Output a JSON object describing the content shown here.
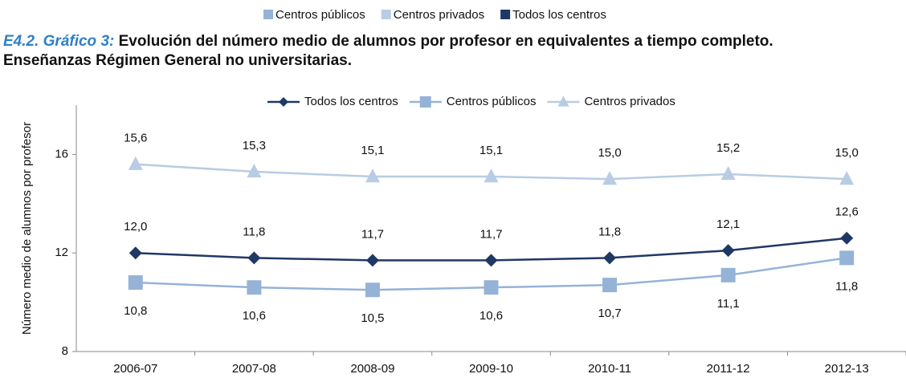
{
  "chart_data": {
    "type": "line",
    "title_prefix": "E4.2. Gráfico 3:",
    "title": "Evolución del número medio de alumnos por profesor en equivalentes a tiempo completo. Enseñanzas Régimen General no universitarias.",
    "ylabel": "Número medio de alumnos por profesor",
    "categories": [
      "2006-07",
      "2007-08",
      "2008-09",
      "2009-10",
      "2010-11",
      "2011-12",
      "2012-13"
    ],
    "series": [
      {
        "name": "Todos los centros",
        "color": "#1f3864",
        "marker": "diamond",
        "values": [
          12.0,
          11.8,
          11.7,
          11.7,
          11.8,
          12.1,
          12.6
        ],
        "value_labels": [
          "12,0",
          "11,8",
          "11,7",
          "11,7",
          "11,8",
          "12,1",
          "12,6"
        ]
      },
      {
        "name": "Centros públicos",
        "color": "#95b3d7",
        "marker": "square",
        "values": [
          10.8,
          10.6,
          10.5,
          10.6,
          10.7,
          11.1,
          11.8
        ],
        "value_labels": [
          "10,8",
          "10,6",
          "10,5",
          "10,6",
          "10,7",
          "11,1",
          "11,8"
        ]
      },
      {
        "name": "Centros privados",
        "color": "#b8cce4",
        "marker": "triangle",
        "values": [
          15.6,
          15.3,
          15.1,
          15.1,
          15.0,
          15.2,
          15.0
        ],
        "value_labels": [
          "15,6",
          "15,3",
          "15,1",
          "15,1",
          "15,0",
          "15,2",
          "15,0"
        ]
      }
    ],
    "ylim": [
      8,
      18
    ],
    "yticks": [
      8,
      12,
      16
    ]
  }
}
